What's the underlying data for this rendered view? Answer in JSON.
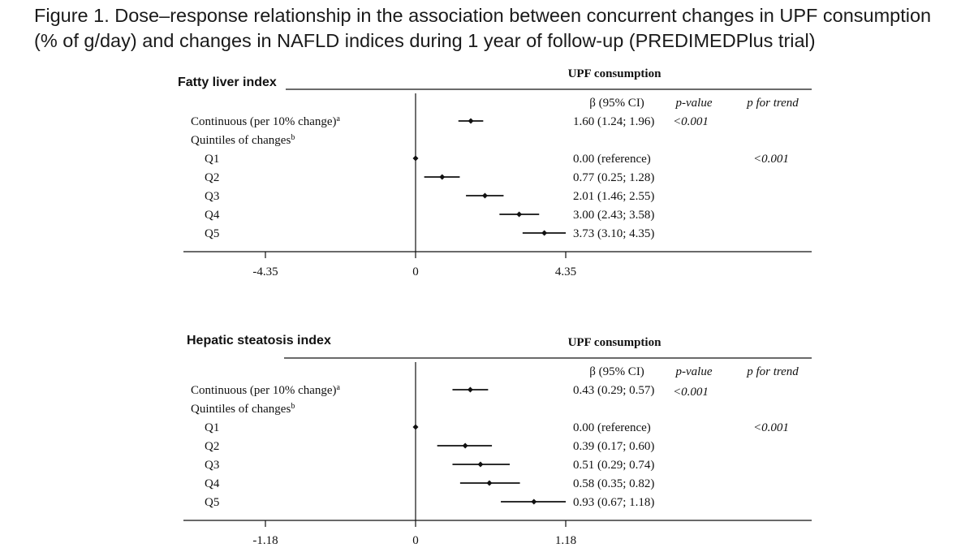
{
  "figure": {
    "title_line1": "Figure 1. Dose–response relationship in the association between concurrent changes in UPF consumption",
    "title_line2": "(% of g/day) and changes in NAFLD indices during 1 year of follow-up (PREDIMEDPlus trial)"
  },
  "chart_data": [
    {
      "type": "forest",
      "title": "Fatty liver index",
      "header": "UPF consumption",
      "columns": [
        "β (95% CI)",
        "p-value",
        "p for trend"
      ],
      "xlim": [
        -6.02,
        10.15
      ],
      "ticks": [
        -4.35,
        0,
        4.35
      ],
      "tick_labels": [
        "-4.35",
        "0",
        "4.35"
      ],
      "rows": [
        {
          "label": "Continuous (per 10% change)",
          "sup": "a",
          "estimate": 1.6,
          "lower": 1.24,
          "upper": 1.96,
          "ci_text": "1.60 (1.24; 1.96)",
          "p_value": "<0.001",
          "p_trend": ""
        },
        {
          "label": "Quintiles of changes",
          "sup": "b",
          "header": true
        },
        {
          "label": "Q1",
          "estimate": 0,
          "lower": 0,
          "upper": 0,
          "ci_text": "0.00 (reference)",
          "p_value": "",
          "p_trend": "<0.001"
        },
        {
          "label": "Q2",
          "estimate": 0.77,
          "lower": 0.25,
          "upper": 1.28,
          "ci_text": "0.77 (0.25; 1.28)",
          "p_value": "",
          "p_trend": ""
        },
        {
          "label": "Q3",
          "estimate": 2.01,
          "lower": 1.46,
          "upper": 2.55,
          "ci_text": "2.01 (1.46; 2.55)",
          "p_value": "",
          "p_trend": ""
        },
        {
          "label": "Q4",
          "estimate": 3.0,
          "lower": 2.43,
          "upper": 3.58,
          "ci_text": "3.00 (2.43; 3.58)",
          "p_value": "",
          "p_trend": ""
        },
        {
          "label": "Q5",
          "estimate": 3.73,
          "lower": 3.1,
          "upper": 4.35,
          "ci_text": "3.73 (3.10; 4.35)",
          "p_value": "",
          "p_trend": ""
        }
      ]
    },
    {
      "type": "forest",
      "title": "Hepatic steatosis index",
      "header": "UPF consumption",
      "columns": [
        "β (95% CI)",
        "p-value",
        "p for trend"
      ],
      "xlim": [
        -1.64,
        2.75
      ],
      "ticks": [
        -1.18,
        0,
        1.18
      ],
      "tick_labels": [
        "-1.18",
        "0",
        "1.18"
      ],
      "rows": [
        {
          "label": "Continuous (per 10% change)",
          "sup": "a",
          "estimate": 0.43,
          "lower": 0.29,
          "upper": 0.57,
          "ci_text": "0.43 (0.29; 0.57)",
          "p_value": "<0.001",
          "p_trend": ""
        },
        {
          "label": "Quintiles of changes",
          "sup": "b",
          "header": true
        },
        {
          "label": "Q1",
          "estimate": 0,
          "lower": 0,
          "upper": 0,
          "ci_text": "0.00 (reference)",
          "p_value": "",
          "p_trend": "<0.001"
        },
        {
          "label": "Q2",
          "estimate": 0.39,
          "lower": 0.17,
          "upper": 0.6,
          "ci_text": "0.39 (0.17; 0.60)",
          "p_value": "",
          "p_trend": ""
        },
        {
          "label": "Q3",
          "estimate": 0.51,
          "lower": 0.29,
          "upper": 0.74,
          "ci_text": "0.51 (0.29; 0.74)",
          "p_value": "",
          "p_trend": ""
        },
        {
          "label": "Q4",
          "estimate": 0.58,
          "lower": 0.35,
          "upper": 0.82,
          "ci_text": "0.58 (0.35; 0.82)",
          "p_value": "",
          "p_trend": ""
        },
        {
          "label": "Q5",
          "estimate": 0.93,
          "lower": 0.67,
          "upper": 1.18,
          "ci_text": "0.93 (0.67; 1.18)",
          "p_value": "",
          "p_trend": ""
        }
      ]
    }
  ]
}
